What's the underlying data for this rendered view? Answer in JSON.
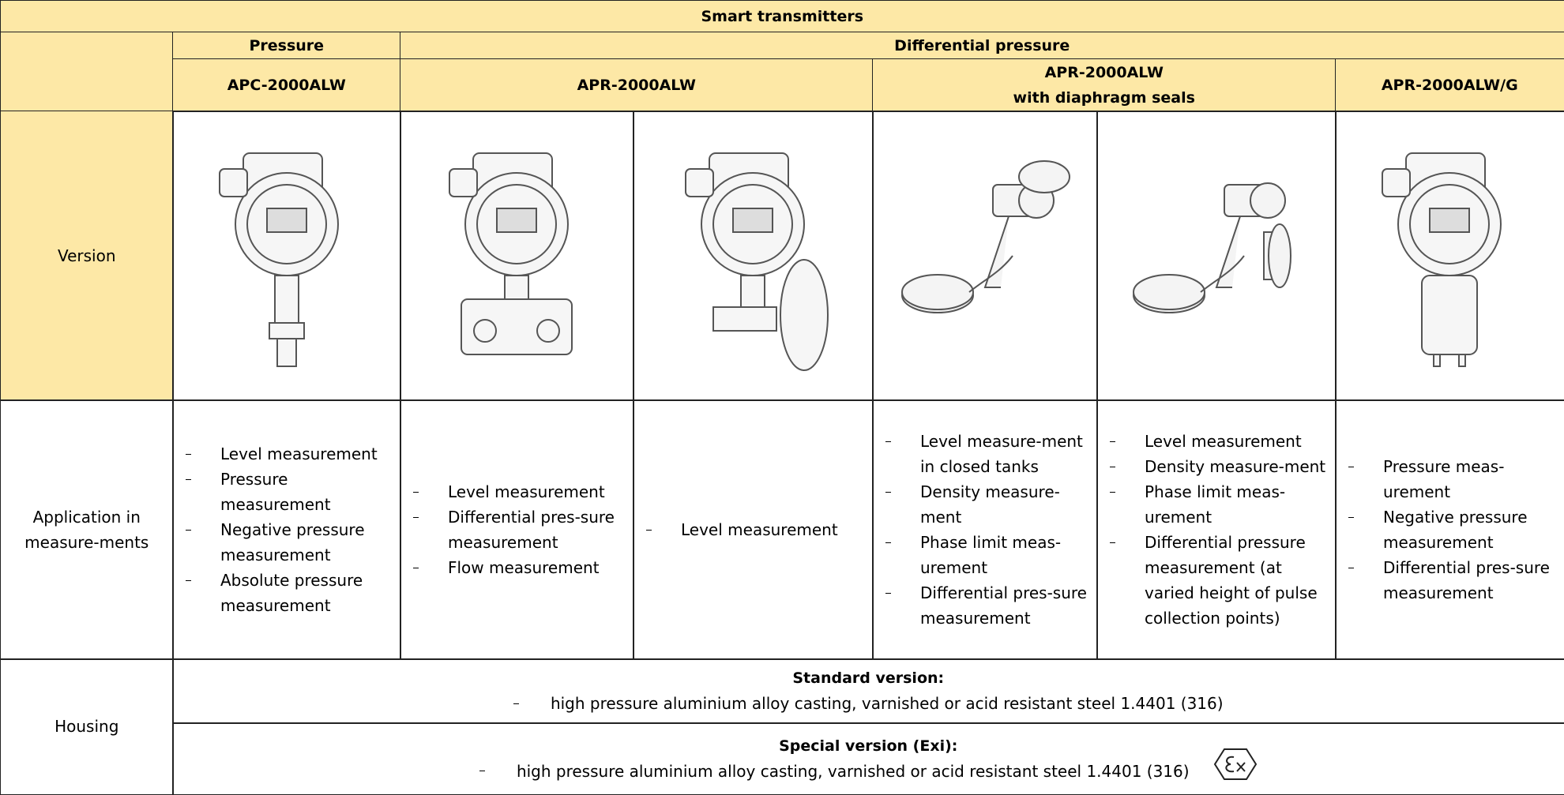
{
  "title": "Smart transmitters",
  "groups": [
    "Pressure",
    "Differential pressure"
  ],
  "models": [
    {
      "name": "APC-2000ALW"
    },
    {
      "name": "APR-2000ALW"
    },
    {
      "name": "APR-2000ALW",
      "subtitle": "with diaphragm seals"
    },
    {
      "name": "APR-2000ALW/G"
    }
  ],
  "rows": {
    "version": {
      "label": "Version"
    },
    "application": {
      "label": "Application in measure-ments",
      "cells": [
        [
          "Level measurement",
          "Pressure measurement",
          "Negative pressure measurement",
          "Absolute pressure measurement"
        ],
        [
          "Level measurement",
          "Differential pres-sure measurement",
          "Flow measurement"
        ],
        [
          "Level measurement"
        ],
        [
          "Level measure-ment in closed tanks",
          "Density measure-ment",
          "Phase limit meas-urement",
          "Differential pres-sure measurement"
        ],
        [
          "Level measurement",
          "Density measure-ment",
          "Phase limit meas-urement",
          "Differential pressure measurement (at varied height of pulse collection points)"
        ],
        [
          "Pressure meas-urement",
          "Negative pressure measurement",
          "Differential pres-sure measurement"
        ]
      ]
    },
    "housing": {
      "label": "Housing",
      "standard": {
        "heading": "Standard version:",
        "text": "high pressure aluminium alloy casting, varnished or acid resistant steel 1.4401 (316)"
      },
      "special": {
        "heading": "Special version (Exi):",
        "text": "high pressure aluminium alloy casting, varnished or acid resistant steel 1.4401 (316)"
      }
    }
  }
}
